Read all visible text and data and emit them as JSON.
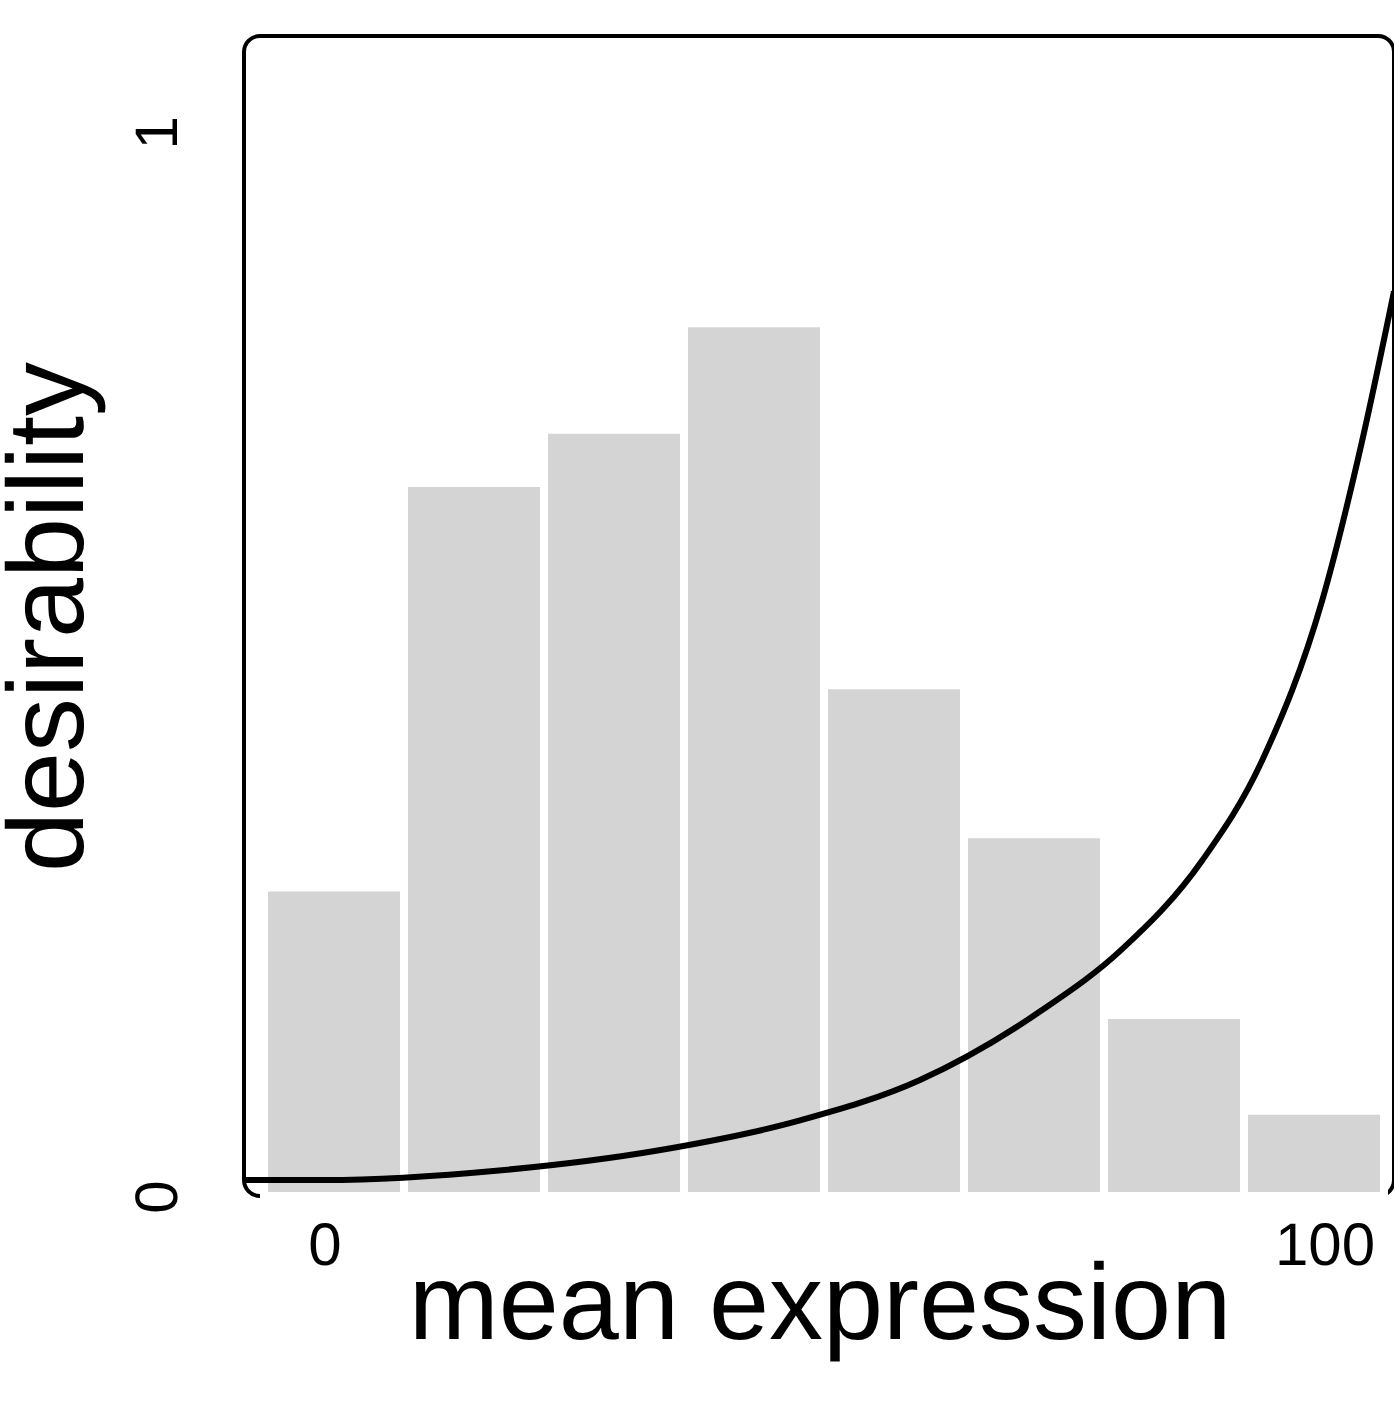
{
  "chart_data": {
    "type": "histogram",
    "xlabel": "mean expression",
    "ylabel": "desirability",
    "bins": [
      -6,
      8,
      22,
      36,
      50,
      64,
      78,
      92,
      106
    ],
    "values": [
      0.29,
      0.67,
      0.72,
      0.82,
      0.48,
      0.34,
      0.17,
      0.08
    ],
    "color": "#d3d4d3",
    "series": [
      {
        "type": "line",
        "color": "#000000",
        "x": [
          -8,
          0,
          17.5,
          33.5,
          47.6,
          59.6,
          71.7,
          79.7,
          87.8,
          93.8,
          99.8,
          103.8,
          107
        ],
        "values": [
          0.015,
          0.015,
          0.024,
          0.043,
          0.071,
          0.109,
          0.174,
          0.231,
          0.315,
          0.409,
          0.559,
          0.709,
          0.85
        ]
      }
    ],
    "xlim": [
      -8,
      107
    ],
    "ylim": [
      0,
      1.09
    ],
    "xticks": [
      0,
      100
    ],
    "yticks": [
      0,
      1
    ],
    "grid": false
  }
}
